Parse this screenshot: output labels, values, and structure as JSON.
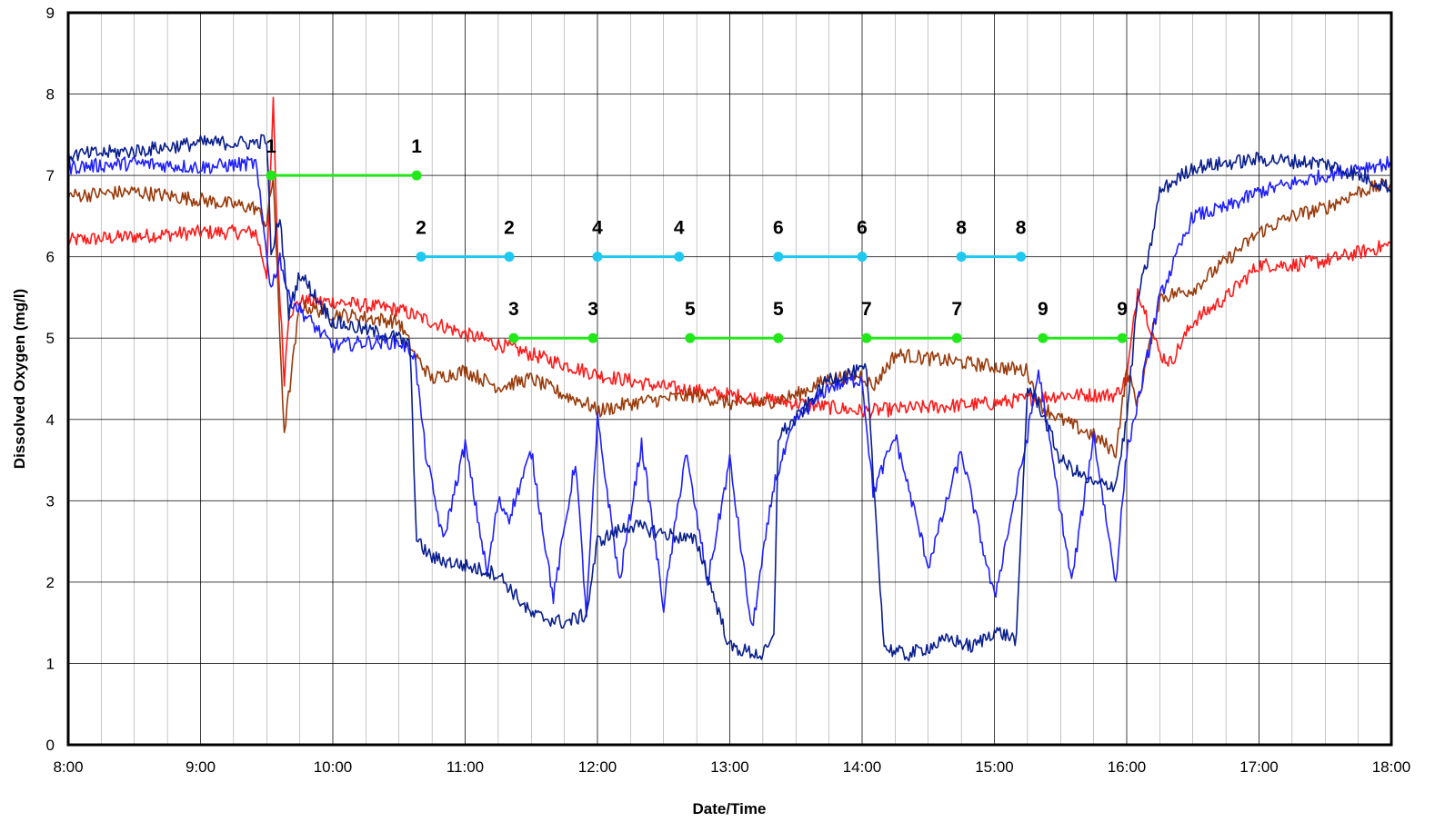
{
  "chart_data": {
    "type": "line",
    "title": "",
    "xlabel": "Date/Time",
    "ylabel": "Dissolved Oxygen (mg/l)",
    "xlim": [
      "8:00",
      "18:00"
    ],
    "ylim": [
      0,
      9
    ],
    "x_ticks": [
      "8:00",
      "9:00",
      "10:00",
      "11:00",
      "12:00",
      "13:00",
      "14:00",
      "15:00",
      "16:00",
      "17:00",
      "18:00"
    ],
    "y_ticks": [
      "0",
      "1",
      "2",
      "3",
      "4",
      "5",
      "6",
      "7",
      "8",
      "9"
    ],
    "grid": true,
    "legend": "none",
    "colors": {
      "navy": "#0a1f8f",
      "blue": "#1f1fff",
      "brown": "#9a3a0a",
      "red": "#ff1a1a",
      "green": "#22e81a",
      "cyan": "#1ec8f0",
      "grid": "#000000"
    },
    "series": [
      {
        "color": "navy",
        "x": [
          "8:00",
          "8:30",
          "9:00",
          "9:25",
          "9:30",
          "9:32",
          "9:36",
          "9:40",
          "9:45",
          "9:50",
          "10:00",
          "10:15",
          "10:30",
          "10:35",
          "10:38",
          "10:45",
          "11:00",
          "11:15",
          "11:30",
          "11:45",
          "11:55",
          "12:00",
          "12:15",
          "12:30",
          "12:45",
          "13:00",
          "13:15",
          "13:20",
          "13:22",
          "13:30",
          "13:45",
          "14:00",
          "14:02",
          "14:10",
          "14:20",
          "14:30",
          "14:40",
          "14:50",
          "15:00",
          "15:10",
          "15:15",
          "15:20",
          "15:30",
          "15:45",
          "15:55",
          "16:00",
          "16:05",
          "16:10",
          "16:15",
          "16:30",
          "17:00",
          "17:30",
          "17:45",
          "18:00"
        ],
        "y": [
          7.25,
          7.3,
          7.4,
          7.4,
          7.45,
          6.0,
          6.5,
          5.3,
          5.8,
          5.6,
          5.2,
          5.1,
          5.0,
          4.9,
          2.5,
          2.3,
          2.2,
          2.1,
          1.6,
          1.5,
          1.6,
          2.5,
          2.7,
          2.6,
          2.5,
          1.2,
          1.1,
          1.3,
          3.8,
          4.0,
          4.5,
          4.6,
          4.6,
          1.2,
          1.1,
          1.2,
          1.3,
          1.2,
          1.4,
          1.3,
          4.4,
          4.2,
          3.5,
          3.2,
          3.2,
          4.0,
          5.5,
          6.0,
          6.8,
          7.1,
          7.2,
          7.15,
          7.0,
          6.85
        ]
      },
      {
        "color": "blue",
        "x": [
          "8:00",
          "8:30",
          "9:00",
          "9:25",
          "9:32",
          "9:36",
          "9:40",
          "9:50",
          "10:00",
          "10:15",
          "10:30",
          "10:37",
          "10:42",
          "10:50",
          "11:00",
          "11:10",
          "11:15",
          "11:20",
          "11:30",
          "11:40",
          "11:50",
          "11:55",
          "12:00",
          "12:10",
          "12:20",
          "12:30",
          "12:40",
          "12:50",
          "13:00",
          "13:10",
          "13:20",
          "13:30",
          "13:45",
          "14:00",
          "14:05",
          "14:15",
          "14:30",
          "14:45",
          "15:00",
          "15:15",
          "15:20",
          "15:35",
          "15:45",
          "15:55",
          "16:00",
          "16:05",
          "16:15",
          "16:30",
          "16:45",
          "17:00",
          "17:15",
          "17:30",
          "17:45",
          "18:00"
        ],
        "y": [
          7.1,
          7.15,
          7.1,
          7.15,
          5.6,
          6.0,
          5.5,
          5.2,
          4.9,
          4.95,
          4.95,
          4.8,
          3.6,
          2.5,
          3.7,
          2.1,
          3.0,
          2.8,
          3.6,
          1.8,
          3.5,
          1.6,
          4.0,
          2.0,
          3.7,
          1.7,
          3.6,
          2.0,
          3.5,
          1.4,
          3.2,
          4.0,
          4.4,
          4.5,
          3.1,
          3.8,
          2.2,
          3.6,
          1.8,
          3.8,
          4.6,
          2.0,
          3.8,
          2.0,
          3.6,
          4.2,
          5.5,
          6.5,
          6.6,
          6.8,
          6.9,
          7.0,
          7.1,
          7.15
        ]
      },
      {
        "color": "brown",
        "x": [
          "8:00",
          "8:30",
          "9:00",
          "9:25",
          "9:30",
          "9:33",
          "9:36",
          "9:38",
          "9:45",
          "10:00",
          "10:30",
          "10:37",
          "10:45",
          "11:00",
          "11:15",
          "11:30",
          "11:45",
          "11:55",
          "12:00",
          "12:15",
          "12:30",
          "12:45",
          "13:00",
          "13:15",
          "13:30",
          "13:45",
          "14:00",
          "14:05",
          "14:15",
          "14:30",
          "14:45",
          "15:00",
          "15:15",
          "15:20",
          "15:30",
          "15:45",
          "15:55",
          "16:00",
          "16:05",
          "16:15",
          "16:30",
          "17:00",
          "17:15",
          "17:30",
          "17:45",
          "18:00"
        ],
        "y": [
          6.75,
          6.8,
          6.7,
          6.6,
          6.4,
          7.0,
          5.0,
          3.85,
          5.4,
          5.3,
          5.2,
          4.8,
          4.5,
          4.6,
          4.4,
          4.5,
          4.3,
          4.2,
          4.1,
          4.2,
          4.25,
          4.3,
          4.2,
          4.2,
          4.3,
          4.5,
          4.55,
          4.4,
          4.8,
          4.75,
          4.7,
          4.65,
          4.6,
          4.2,
          4.0,
          3.8,
          3.6,
          4.6,
          4.2,
          5.5,
          5.6,
          6.3,
          6.5,
          6.6,
          6.8,
          6.9
        ]
      },
      {
        "color": "red",
        "x": [
          "8:00",
          "8:30",
          "9:00",
          "9:25",
          "9:30",
          "9:33",
          "9:35",
          "9:38",
          "9:40",
          "9:45",
          "10:00",
          "10:30",
          "10:45",
          "11:00",
          "11:30",
          "12:00",
          "12:30",
          "13:00",
          "13:30",
          "14:00",
          "14:30",
          "15:00",
          "15:30",
          "15:55",
          "16:00",
          "16:05",
          "16:15",
          "16:20",
          "16:30",
          "16:45",
          "17:00",
          "17:15",
          "17:30",
          "17:45",
          "18:00"
        ],
        "y": [
          6.2,
          6.25,
          6.3,
          6.3,
          5.8,
          7.9,
          6.0,
          4.5,
          5.3,
          5.45,
          5.45,
          5.35,
          5.2,
          5.05,
          4.8,
          4.55,
          4.4,
          4.3,
          4.2,
          4.1,
          4.15,
          4.2,
          4.3,
          4.3,
          4.5,
          5.6,
          4.8,
          4.7,
          5.2,
          5.5,
          5.9,
          5.9,
          5.95,
          6.05,
          6.15
        ]
      }
    ],
    "annotations": [
      {
        "color": "green",
        "y": 7,
        "x": [
          "9:32",
          "10:38"
        ],
        "labels": [
          "1",
          "1"
        ]
      },
      {
        "color": "cyan",
        "y": 6,
        "x": [
          "10:40",
          "11:20"
        ],
        "labels": [
          "2",
          "2"
        ]
      },
      {
        "color": "green",
        "y": 5,
        "x": [
          "11:22",
          "11:58"
        ],
        "labels": [
          "3",
          "3"
        ]
      },
      {
        "color": "cyan",
        "y": 6,
        "x": [
          "12:00",
          "12:37"
        ],
        "labels": [
          "4",
          "4"
        ]
      },
      {
        "color": "green",
        "y": 5,
        "x": [
          "12:42",
          "13:22"
        ],
        "labels": [
          "5",
          "5"
        ]
      },
      {
        "color": "cyan",
        "y": 6,
        "x": [
          "13:22",
          "14:00"
        ],
        "labels": [
          "6",
          "6"
        ]
      },
      {
        "color": "green",
        "y": 5,
        "x": [
          "14:02",
          "14:43"
        ],
        "labels": [
          "7",
          "7"
        ]
      },
      {
        "color": "cyan",
        "y": 6,
        "x": [
          "14:45",
          "15:12"
        ],
        "labels": [
          "8",
          "8"
        ]
      },
      {
        "color": "green",
        "y": 5,
        "x": [
          "15:22",
          "15:58"
        ],
        "labels": [
          "9",
          "9"
        ]
      }
    ]
  }
}
